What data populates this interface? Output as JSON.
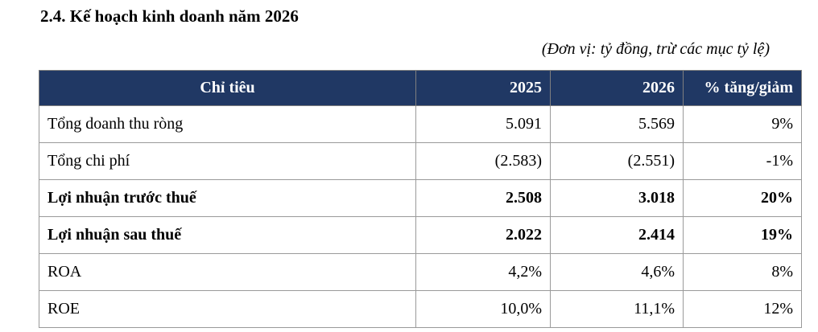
{
  "header": {
    "title": "2.4. Kế hoạch kinh doanh năm 2026",
    "unit_note": "(Đơn vị: tỷ đồng, trừ các mục tỷ lệ)"
  },
  "table": {
    "columns": [
      "Chỉ tiêu",
      "2025",
      "2026",
      "% tăng/giảm"
    ],
    "rows": [
      {
        "cells": [
          "Tổng doanh thu ròng",
          "5.091",
          "5.569",
          "9%"
        ],
        "bold": false
      },
      {
        "cells": [
          "Tổng chi phí",
          "(2.583)",
          "(2.551)",
          "-1%"
        ],
        "bold": false
      },
      {
        "cells": [
          "Lợi nhuận trước thuế",
          "2.508",
          "3.018",
          "20%"
        ],
        "bold": true
      },
      {
        "cells": [
          "Lợi nhuận sau thuế",
          "2.022",
          "2.414",
          "19%"
        ],
        "bold": true
      },
      {
        "cells": [
          "ROA",
          "4,2%",
          "4,6%",
          "8%"
        ],
        "bold": false
      },
      {
        "cells": [
          "ROE",
          "10,0%",
          "11,1%",
          "12%"
        ],
        "bold": false
      }
    ]
  }
}
